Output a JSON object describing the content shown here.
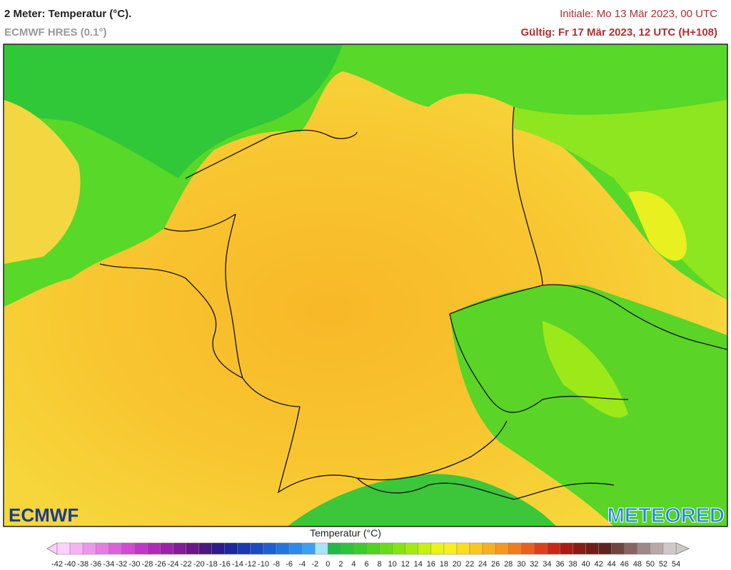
{
  "header": {
    "title": "2 Meter: Temperatur (°C).",
    "subtitle": "ECMWF HRES (0.1°)",
    "init": "Initiale: Mo 13 Mär 2023, 00 UTC",
    "valid": "Gültig: Fr 17 Mär 2023, 12 UTC (H+108)"
  },
  "logos": {
    "left": "ECMWF",
    "right": "METEORED"
  },
  "legend": {
    "title": "Temperatur (°C)",
    "ticks": [
      -42,
      -40,
      -38,
      -36,
      -34,
      -32,
      -30,
      -28,
      -26,
      -24,
      -22,
      -20,
      -18,
      -16,
      -14,
      -12,
      -10,
      -8,
      -6,
      -4,
      -2,
      0,
      2,
      4,
      6,
      8,
      10,
      12,
      14,
      16,
      18,
      20,
      22,
      24,
      26,
      28,
      30,
      32,
      34,
      36,
      38,
      40,
      42,
      44,
      46,
      48,
      50,
      52,
      54
    ],
    "colors": [
      "#fbd0fb",
      "#f4b4f2",
      "#ec98ea",
      "#e47ce2",
      "#da62da",
      "#d04ad2",
      "#c236c6",
      "#b02ab8",
      "#9a22a8",
      "#821c98",
      "#6a1688",
      "#4a1880",
      "#2c1e8c",
      "#1a2a9c",
      "#1a3aae",
      "#1a4cc0",
      "#1e60d0",
      "#2474de",
      "#2c8aea",
      "#3aa0f2",
      "#a8e4f8",
      "#22b84a",
      "#2cc43a",
      "#3ccc2c",
      "#50d420",
      "#68dc18",
      "#84e410",
      "#a4ea10",
      "#c8f010",
      "#e8f418",
      "#f8ee20",
      "#fadc20",
      "#f8c820",
      "#f6b020",
      "#f49820",
      "#f07c1e",
      "#e8601c",
      "#dc401a",
      "#c82818",
      "#a81c16",
      "#8a1a14",
      "#701c18",
      "#5c2420",
      "#6e4440",
      "#866664",
      "#9e8888",
      "#b8a8a8",
      "#d0c8c8"
    ]
  }
}
